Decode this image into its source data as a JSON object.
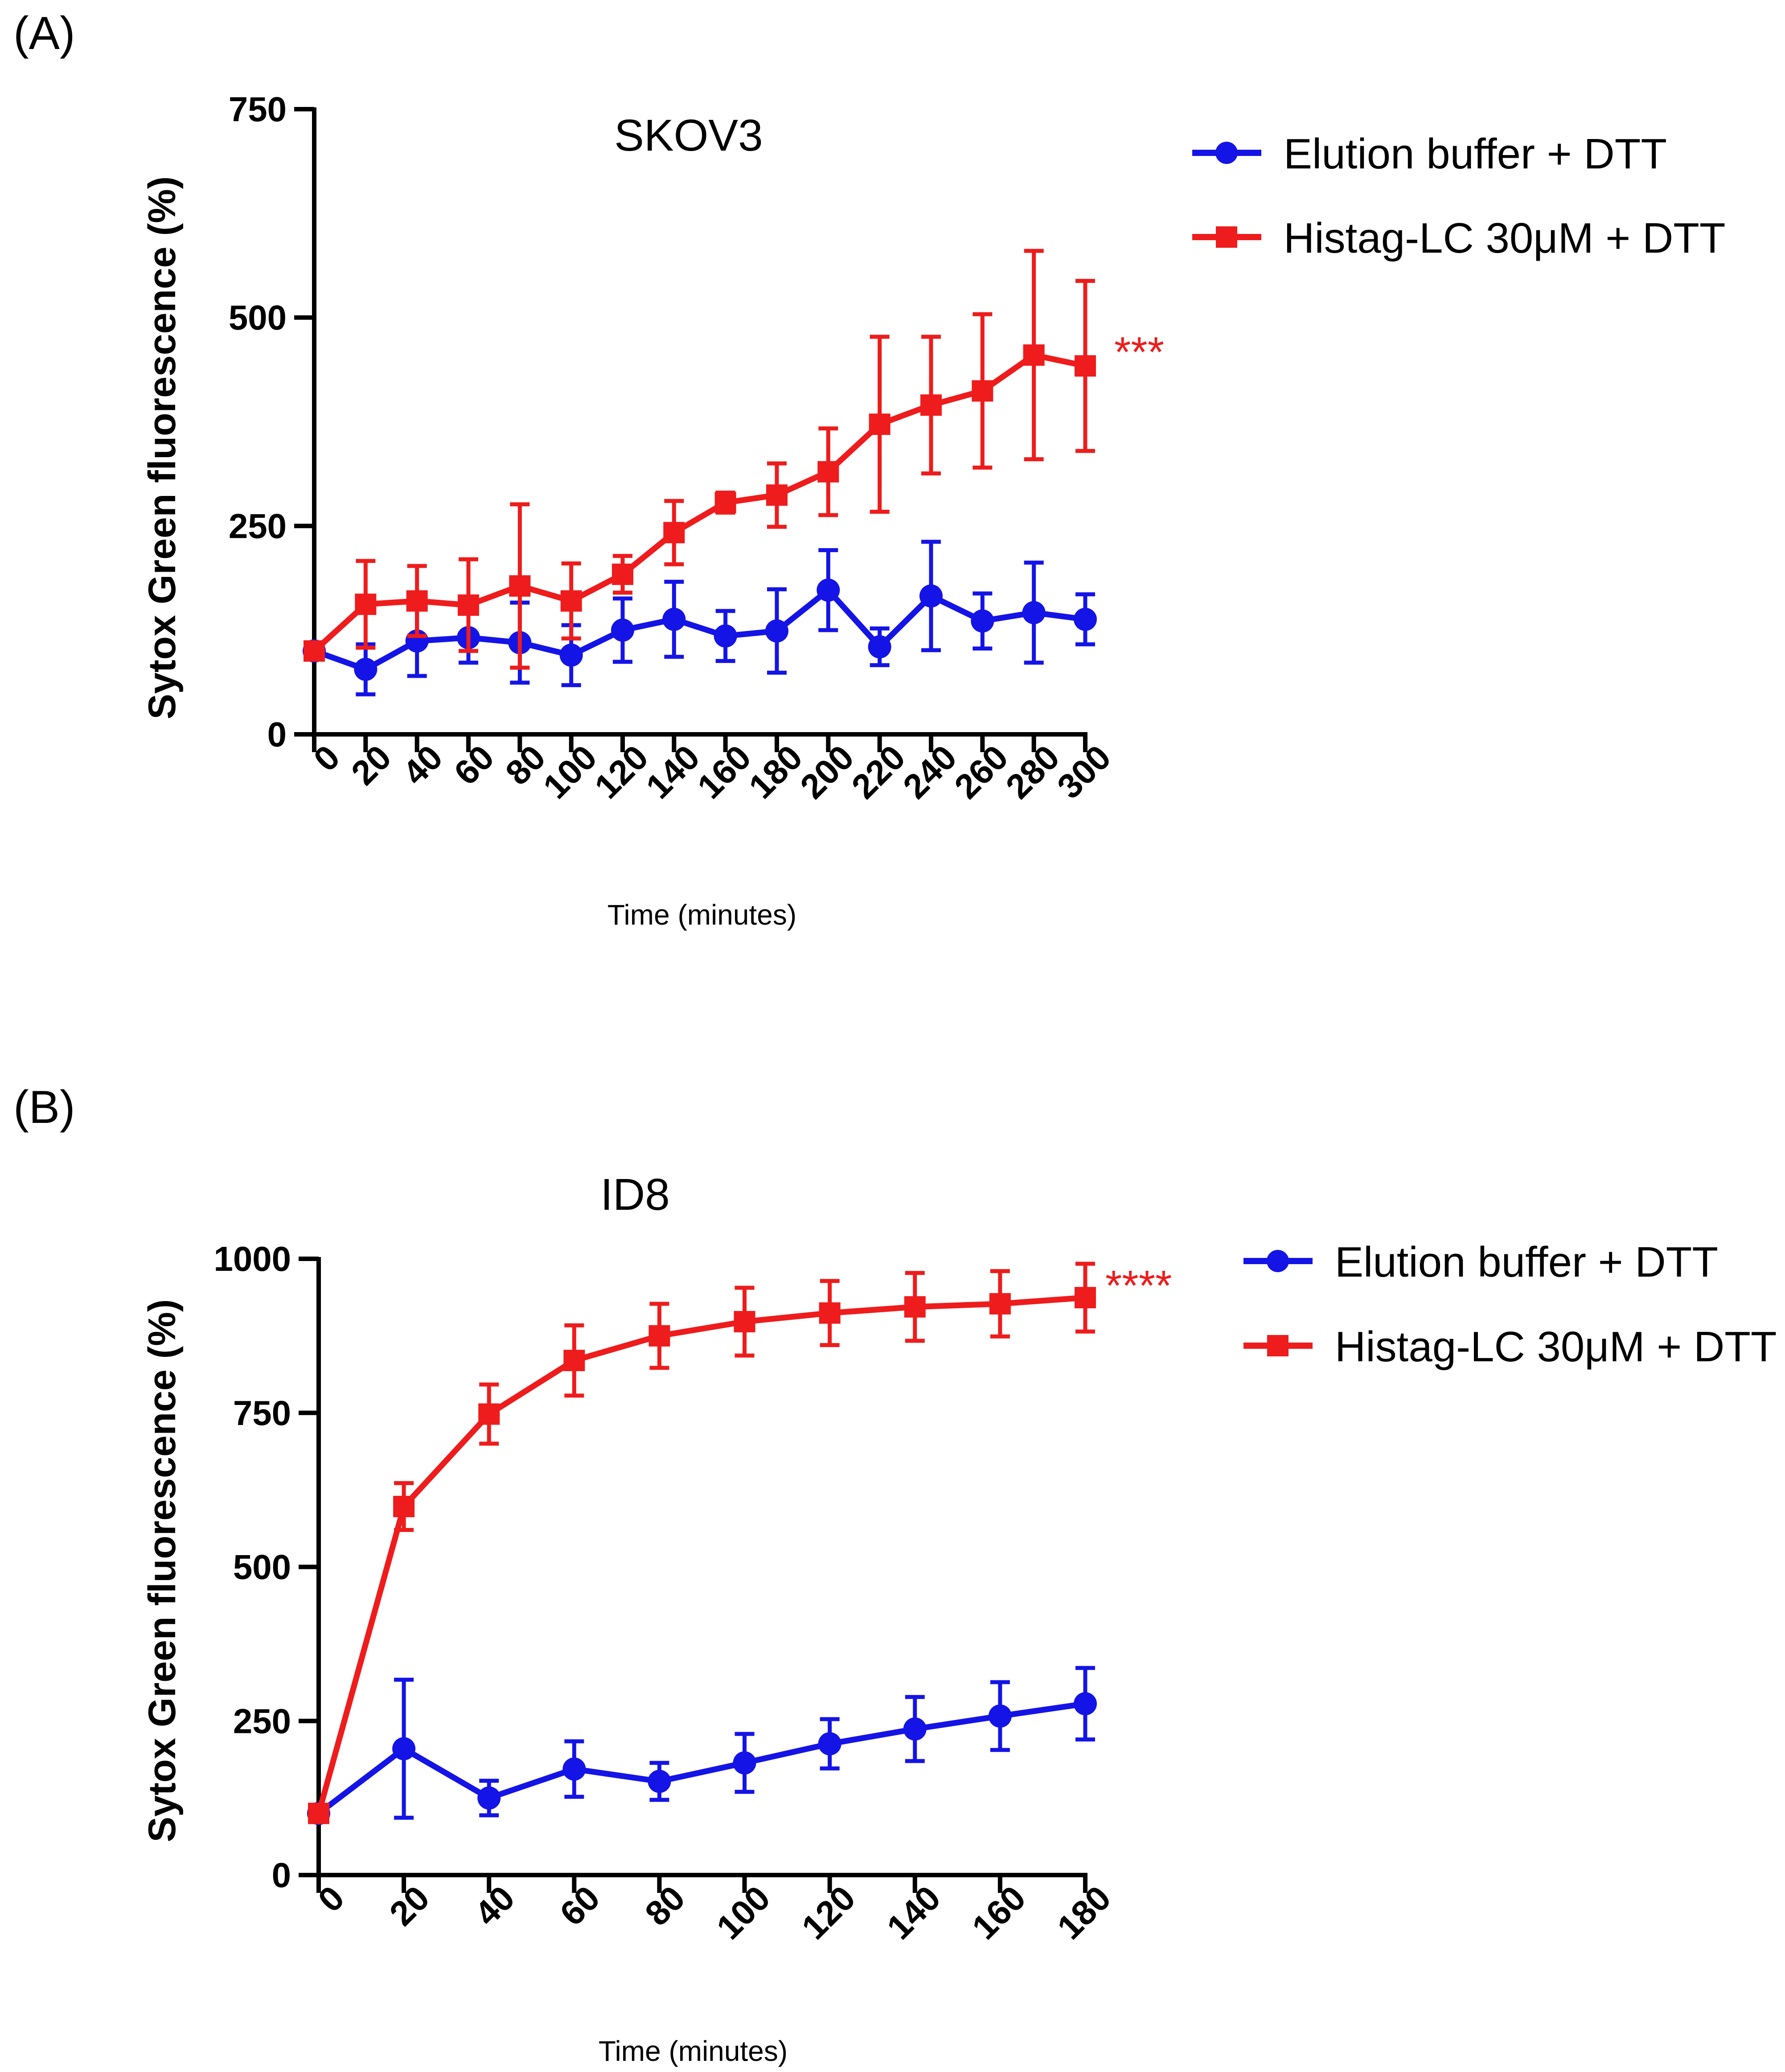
{
  "chart_data": [
    {
      "panel_label": "(A)",
      "type": "line",
      "title": "SKOV3",
      "xlabel": "Time (minutes)",
      "ylabel": "Sytox Green fluorescence (%)",
      "x": [
        0,
        20,
        40,
        60,
        80,
        100,
        120,
        140,
        160,
        180,
        200,
        220,
        240,
        260,
        280,
        300
      ],
      "xlim": [
        0,
        300
      ],
      "ylim": [
        0,
        750
      ],
      "yticks": [
        0,
        250,
        500,
        750
      ],
      "legend_position": "right",
      "significance": "***",
      "series": [
        {
          "name": "Elution buffer + DTT",
          "color": "#1414e6",
          "marker": "circle",
          "values": [
            100,
            78,
            112,
            116,
            110,
            95,
            125,
            138,
            118,
            124,
            173,
            105,
            166,
            136,
            146,
            138
          ],
          "errors": [
            8,
            30,
            42,
            30,
            48,
            36,
            38,
            45,
            30,
            50,
            48,
            22,
            65,
            33,
            60,
            30
          ]
        },
        {
          "name": "Histag-LC 30μM  + DTT",
          "color": "#ee1c1c",
          "marker": "square",
          "values": [
            100,
            156,
            160,
            155,
            178,
            160,
            192,
            242,
            278,
            287,
            315,
            372,
            395,
            412,
            455,
            442
          ],
          "errors": [
            8,
            52,
            42,
            55,
            98,
            45,
            22,
            38,
            12,
            38,
            52,
            105,
            82,
            92,
            125,
            102
          ]
        }
      ]
    },
    {
      "panel_label": "(B)",
      "type": "line",
      "title": "ID8",
      "xlabel": "Time (minutes)",
      "ylabel": "Sytox Green fluorescence (%)",
      "x": [
        0,
        20,
        40,
        60,
        80,
        100,
        120,
        140,
        160,
        180
      ],
      "xlim": [
        0,
        180
      ],
      "ylim": [
        0,
        1000
      ],
      "yticks": [
        0,
        250,
        500,
        750,
        1000
      ],
      "legend_position": "right",
      "significance": "****",
      "series": [
        {
          "name": "Elution buffer + DTT",
          "color": "#1414e6",
          "marker": "circle",
          "values": [
            100,
            205,
            125,
            172,
            152,
            182,
            213,
            237,
            258,
            278
          ],
          "errors": [
            10,
            112,
            28,
            45,
            30,
            47,
            40,
            52,
            55,
            58
          ]
        },
        {
          "name": "Histag-LC 30μM  + DTT",
          "color": "#ee1c1c",
          "marker": "square",
          "values": [
            100,
            598,
            748,
            835,
            875,
            898,
            912,
            922,
            927,
            937
          ],
          "errors": [
            10,
            38,
            48,
            57,
            52,
            55,
            52,
            55,
            53,
            55
          ]
        }
      ]
    }
  ]
}
